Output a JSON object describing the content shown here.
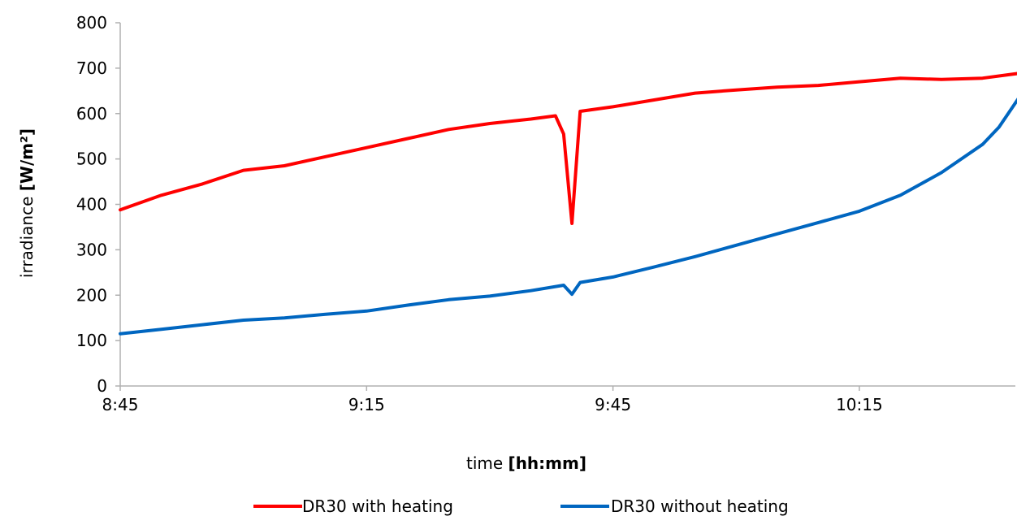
{
  "chart_data": {
    "type": "line",
    "xlabel": "time",
    "xlabel_unit": "[hh:mm]",
    "ylabel": "irradiance",
    "ylabel_unit": "[W/m²]",
    "ylim": [
      0,
      800
    ],
    "y_ticks": [
      "0",
      "100",
      "200",
      "300",
      "400",
      "500",
      "600",
      "700",
      "800"
    ],
    "x_ticks": [
      "8:45",
      "9:15",
      "9:45",
      "10:15"
    ],
    "x_tick_minutes": [
      525,
      555,
      585,
      615
    ],
    "xlim_minutes": [
      525,
      634
    ],
    "grid": false,
    "legend_position": "bottom",
    "series": [
      {
        "name": "DR30 with heating",
        "color": "#ff0000",
        "x": [
          "8:45",
          "8:50",
          "8:55",
          "9:00",
          "9:05",
          "9:10",
          "9:15",
          "9:20",
          "9:25",
          "9:30",
          "9:35",
          "9:38",
          "9:39",
          "9:40",
          "9:41",
          "9:45",
          "9:50",
          "9:55",
          "10:00",
          "10:05",
          "10:10",
          "10:15",
          "10:20",
          "10:25",
          "10:30",
          "10:35",
          "10:39"
        ],
        "values": [
          388,
          420,
          445,
          475,
          485,
          505,
          525,
          545,
          565,
          578,
          588,
          595,
          555,
          358,
          605,
          615,
          630,
          645,
          652,
          658,
          662,
          670,
          678,
          675,
          678,
          690,
          688
        ]
      },
      {
        "name": "DR30 without heating",
        "color": "#0066c0",
        "x": [
          "8:45",
          "8:50",
          "8:55",
          "9:00",
          "9:05",
          "9:10",
          "9:15",
          "9:20",
          "9:25",
          "9:30",
          "9:35",
          "9:39",
          "9:40",
          "9:41",
          "9:45",
          "9:50",
          "9:55",
          "10:00",
          "10:05",
          "10:10",
          "10:15",
          "10:20",
          "10:25",
          "10:30",
          "10:32",
          "10:35",
          "10:37",
          "10:39"
        ],
        "values": [
          115,
          125,
          135,
          145,
          150,
          158,
          165,
          178,
          190,
          198,
          210,
          222,
          202,
          228,
          240,
          262,
          285,
          310,
          335,
          360,
          385,
          420,
          470,
          532,
          570,
          650,
          695,
          695
        ]
      }
    ]
  }
}
